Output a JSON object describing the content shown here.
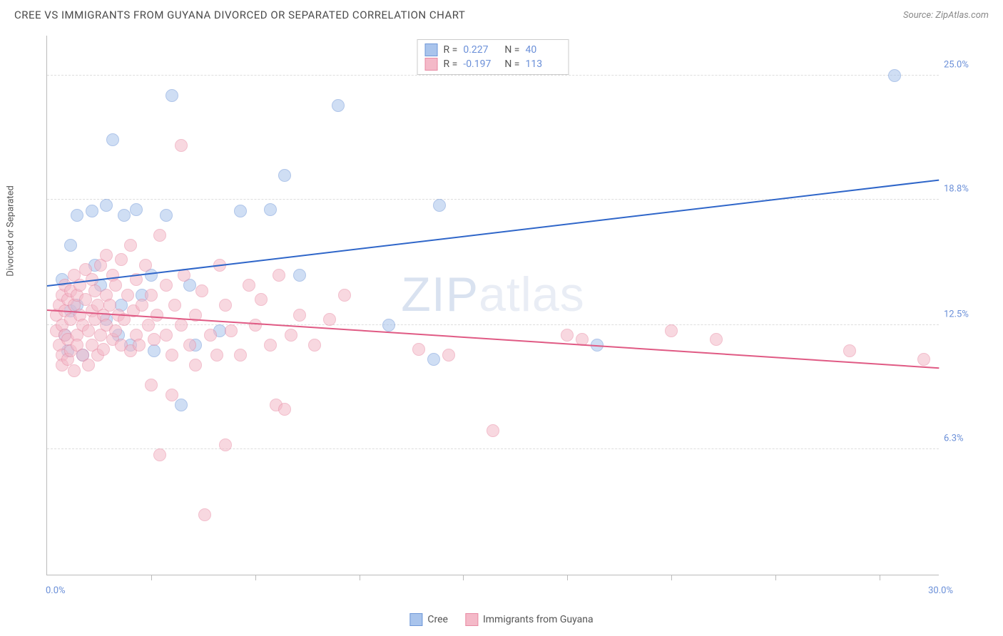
{
  "header": {
    "title": "CREE VS IMMIGRANTS FROM GUYANA DIVORCED OR SEPARATED CORRELATION CHART",
    "source": "Source: ZipAtlas.com"
  },
  "chart": {
    "type": "scatter",
    "ylabel": "Divorced or Separated",
    "xlim": [
      0,
      30
    ],
    "ylim": [
      0,
      27
    ],
    "xticks": [
      3.5,
      7,
      10.5,
      14,
      17.5,
      21,
      24.5,
      28
    ],
    "xaxis_min_label": "0.0%",
    "xaxis_max_label": "30.0%",
    "yticks": [
      {
        "v": 6.3,
        "label": "6.3%"
      },
      {
        "v": 12.5,
        "label": "12.5%"
      },
      {
        "v": 18.8,
        "label": "18.8%"
      },
      {
        "v": 25.0,
        "label": "25.0%"
      }
    ],
    "grid_color": "#dddddd",
    "axis_color": "#bbbbbb",
    "background_color": "#ffffff",
    "marker_radius": 9,
    "marker_opacity": 0.55,
    "watermark": {
      "part1": "ZIP",
      "part2": "atlas"
    },
    "series": [
      {
        "name": "Cree",
        "fill": "#a9c4ec",
        "stroke": "#6f97d8",
        "trend_color": "#2f66c9",
        "R": "0.227",
        "N": "40",
        "trend": {
          "x1": 0,
          "y1": 14.5,
          "x2": 30,
          "y2": 19.8
        },
        "points": [
          [
            0.5,
            14.8
          ],
          [
            0.6,
            12.0
          ],
          [
            0.7,
            11.2
          ],
          [
            0.8,
            13.2
          ],
          [
            0.8,
            16.5
          ],
          [
            1.0,
            18.0
          ],
          [
            1.0,
            13.5
          ],
          [
            1.2,
            11.0
          ],
          [
            1.5,
            18.2
          ],
          [
            1.6,
            15.5
          ],
          [
            1.8,
            14.5
          ],
          [
            2.0,
            18.5
          ],
          [
            2.0,
            12.8
          ],
          [
            2.2,
            21.8
          ],
          [
            2.4,
            12.0
          ],
          [
            2.5,
            13.5
          ],
          [
            2.6,
            18.0
          ],
          [
            2.8,
            11.5
          ],
          [
            3.0,
            18.3
          ],
          [
            3.2,
            14.0
          ],
          [
            3.5,
            15.0
          ],
          [
            3.6,
            11.2
          ],
          [
            4.0,
            18.0
          ],
          [
            4.2,
            24.0
          ],
          [
            4.5,
            8.5
          ],
          [
            4.8,
            14.5
          ],
          [
            5.0,
            11.5
          ],
          [
            5.8,
            12.2
          ],
          [
            6.5,
            18.2
          ],
          [
            7.5,
            18.3
          ],
          [
            8.0,
            20.0
          ],
          [
            8.5,
            15.0
          ],
          [
            9.8,
            23.5
          ],
          [
            11.5,
            12.5
          ],
          [
            13.2,
            18.5
          ],
          [
            13.0,
            10.8
          ],
          [
            18.5,
            11.5
          ],
          [
            28.5,
            25.0
          ]
        ]
      },
      {
        "name": "Immigrants from Guyana",
        "fill": "#f4b9c8",
        "stroke": "#e88aa3",
        "trend_color": "#e05a84",
        "R": "-0.197",
        "N": "113",
        "trend": {
          "x1": 0,
          "y1": 13.3,
          "x2": 30,
          "y2": 10.4
        },
        "points": [
          [
            0.3,
            13.0
          ],
          [
            0.3,
            12.2
          ],
          [
            0.4,
            11.5
          ],
          [
            0.4,
            13.5
          ],
          [
            0.5,
            14.0
          ],
          [
            0.5,
            12.5
          ],
          [
            0.5,
            11.0
          ],
          [
            0.5,
            10.5
          ],
          [
            0.6,
            13.2
          ],
          [
            0.6,
            14.5
          ],
          [
            0.6,
            12.0
          ],
          [
            0.7,
            13.8
          ],
          [
            0.7,
            11.8
          ],
          [
            0.7,
            10.8
          ],
          [
            0.8,
            14.2
          ],
          [
            0.8,
            12.8
          ],
          [
            0.8,
            11.2
          ],
          [
            0.9,
            13.5
          ],
          [
            0.9,
            15.0
          ],
          [
            0.9,
            10.2
          ],
          [
            1.0,
            14.0
          ],
          [
            1.0,
            12.0
          ],
          [
            1.0,
            11.5
          ],
          [
            1.1,
            13.0
          ],
          [
            1.1,
            14.5
          ],
          [
            1.2,
            12.5
          ],
          [
            1.2,
            11.0
          ],
          [
            1.3,
            13.8
          ],
          [
            1.3,
            15.3
          ],
          [
            1.4,
            12.2
          ],
          [
            1.4,
            10.5
          ],
          [
            1.5,
            14.8
          ],
          [
            1.5,
            13.2
          ],
          [
            1.5,
            11.5
          ],
          [
            1.6,
            12.8
          ],
          [
            1.6,
            14.2
          ],
          [
            1.7,
            11.0
          ],
          [
            1.7,
            13.5
          ],
          [
            1.8,
            12.0
          ],
          [
            1.8,
            15.5
          ],
          [
            1.9,
            13.0
          ],
          [
            1.9,
            11.3
          ],
          [
            2.0,
            14.0
          ],
          [
            2.0,
            12.5
          ],
          [
            2.0,
            16.0
          ],
          [
            2.1,
            13.5
          ],
          [
            2.2,
            11.8
          ],
          [
            2.2,
            15.0
          ],
          [
            2.3,
            12.2
          ],
          [
            2.3,
            14.5
          ],
          [
            2.4,
            13.0
          ],
          [
            2.5,
            11.5
          ],
          [
            2.5,
            15.8
          ],
          [
            2.6,
            12.8
          ],
          [
            2.7,
            14.0
          ],
          [
            2.8,
            11.2
          ],
          [
            2.8,
            16.5
          ],
          [
            2.9,
            13.2
          ],
          [
            3.0,
            12.0
          ],
          [
            3.0,
            14.8
          ],
          [
            3.1,
            11.5
          ],
          [
            3.2,
            13.5
          ],
          [
            3.3,
            15.5
          ],
          [
            3.4,
            12.5
          ],
          [
            3.5,
            14.0
          ],
          [
            3.5,
            9.5
          ],
          [
            3.6,
            11.8
          ],
          [
            3.7,
            13.0
          ],
          [
            3.8,
            17.0
          ],
          [
            3.8,
            6.0
          ],
          [
            4.0,
            12.0
          ],
          [
            4.0,
            14.5
          ],
          [
            4.2,
            11.0
          ],
          [
            4.2,
            9.0
          ],
          [
            4.3,
            13.5
          ],
          [
            4.5,
            21.5
          ],
          [
            4.5,
            12.5
          ],
          [
            4.6,
            15.0
          ],
          [
            4.8,
            11.5
          ],
          [
            5.0,
            13.0
          ],
          [
            5.0,
            10.5
          ],
          [
            5.2,
            14.2
          ],
          [
            5.3,
            3.0
          ],
          [
            5.5,
            12.0
          ],
          [
            5.7,
            11.0
          ],
          [
            5.8,
            15.5
          ],
          [
            6.0,
            13.5
          ],
          [
            6.0,
            6.5
          ],
          [
            6.2,
            12.2
          ],
          [
            6.5,
            11.0
          ],
          [
            6.8,
            14.5
          ],
          [
            7.0,
            12.5
          ],
          [
            7.2,
            13.8
          ],
          [
            7.5,
            11.5
          ],
          [
            7.7,
            8.5
          ],
          [
            7.8,
            15.0
          ],
          [
            8.0,
            8.3
          ],
          [
            8.2,
            12.0
          ],
          [
            8.5,
            13.0
          ],
          [
            9.0,
            11.5
          ],
          [
            9.5,
            12.8
          ],
          [
            10.0,
            14.0
          ],
          [
            12.5,
            11.3
          ],
          [
            13.5,
            11.0
          ],
          [
            15.0,
            7.2
          ],
          [
            17.5,
            12.0
          ],
          [
            18.0,
            11.8
          ],
          [
            21.0,
            12.2
          ],
          [
            22.5,
            11.8
          ],
          [
            27.0,
            11.2
          ],
          [
            29.5,
            10.8
          ]
        ]
      }
    ],
    "legend": [
      {
        "label": "Cree",
        "series": 0
      },
      {
        "label": "Immigrants from Guyana",
        "series": 1
      }
    ]
  }
}
